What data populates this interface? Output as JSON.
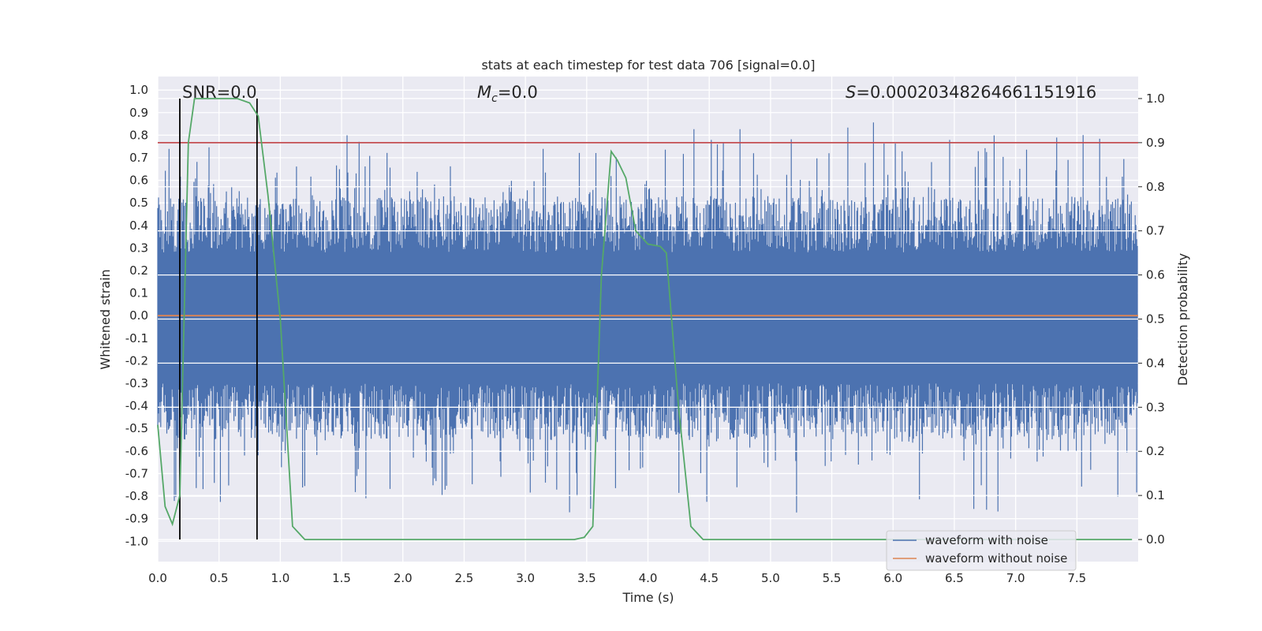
{
  "chart_data": {
    "type": "line",
    "title": "stats at each timestep for test data 706 [signal=0.0]",
    "xlabel": "Time (s)",
    "ylabel": "Whitened strain",
    "y2label": "Detection probability",
    "xlim": [
      0.0,
      8.0
    ],
    "ylim": [
      -1.09,
      1.06
    ],
    "y2lim": [
      -0.05,
      1.05
    ],
    "xticks": [
      "0.0",
      "0.5",
      "1.0",
      "1.5",
      "2.0",
      "2.5",
      "3.0",
      "3.5",
      "4.0",
      "4.5",
      "5.0",
      "5.5",
      "6.0",
      "6.5",
      "7.0",
      "7.5"
    ],
    "yticks": [
      "1.0",
      "0.9",
      "0.8",
      "0.7",
      "0.6",
      "0.5",
      "0.4",
      "0.3",
      "0.2",
      "0.1",
      "0.0",
      "-0.1",
      "-0.2",
      "-0.3",
      "-0.4",
      "-0.5",
      "-0.6",
      "-0.7",
      "-0.8",
      "-0.9",
      "-1.0"
    ],
    "y2ticks": [
      "1.0",
      "0.9",
      "0.8",
      "0.7",
      "0.6",
      "0.5",
      "0.4",
      "0.3",
      "0.2",
      "0.1",
      "0.0"
    ],
    "annotations": {
      "snr": "SNR=0.0",
      "mc_symbol": "M",
      "mc_sub": "c",
      "mc_value": "=0.0",
      "s_symbol": "S",
      "s_value": "=0.00020348264661151916"
    },
    "series": [
      {
        "name": "waveform with noise",
        "color": "#4c72b0",
        "description": "dense noisy whitened strain spanning roughly -1.0 to 1.0"
      },
      {
        "name": "waveform without noise",
        "color": "#dd8452",
        "y_constant": 0.0
      },
      {
        "name": "Detection probability",
        "color": "#55a868",
        "axis": "right",
        "x": [
          0.0,
          0.06,
          0.12,
          0.18,
          0.25,
          0.3,
          0.35,
          0.45,
          0.55,
          0.65,
          0.75,
          0.82,
          0.9,
          1.0,
          1.1,
          1.2,
          1.3,
          2.0,
          3.0,
          3.4,
          3.48,
          3.55,
          3.62,
          3.7,
          3.75,
          3.82,
          3.9,
          4.0,
          4.1,
          4.15,
          4.25,
          4.35,
          4.45,
          5.0,
          6.0,
          7.0,
          7.95
        ],
        "values": [
          0.26,
          0.075,
          0.035,
          0.1,
          0.9,
          1.0,
          1.0,
          1.0,
          1.0,
          1.0,
          0.99,
          0.96,
          0.78,
          0.5,
          0.03,
          0.0,
          0.0,
          0.0,
          0.0,
          0.0,
          0.005,
          0.03,
          0.6,
          0.88,
          0.86,
          0.82,
          0.7,
          0.67,
          0.665,
          0.65,
          0.3,
          0.03,
          0.0,
          0.0,
          0.0,
          0.0,
          0.0
        ]
      }
    ],
    "threshold": {
      "axis": "right",
      "value": 0.9,
      "color": "#c44e52"
    },
    "vlines": {
      "x": [
        0.18,
        0.81
      ],
      "ymin": 0.0,
      "ymax": 1.0,
      "color": "#000000"
    },
    "legend": {
      "location": "lower-right",
      "entries": [
        "waveform with noise",
        "waveform without noise"
      ]
    }
  }
}
